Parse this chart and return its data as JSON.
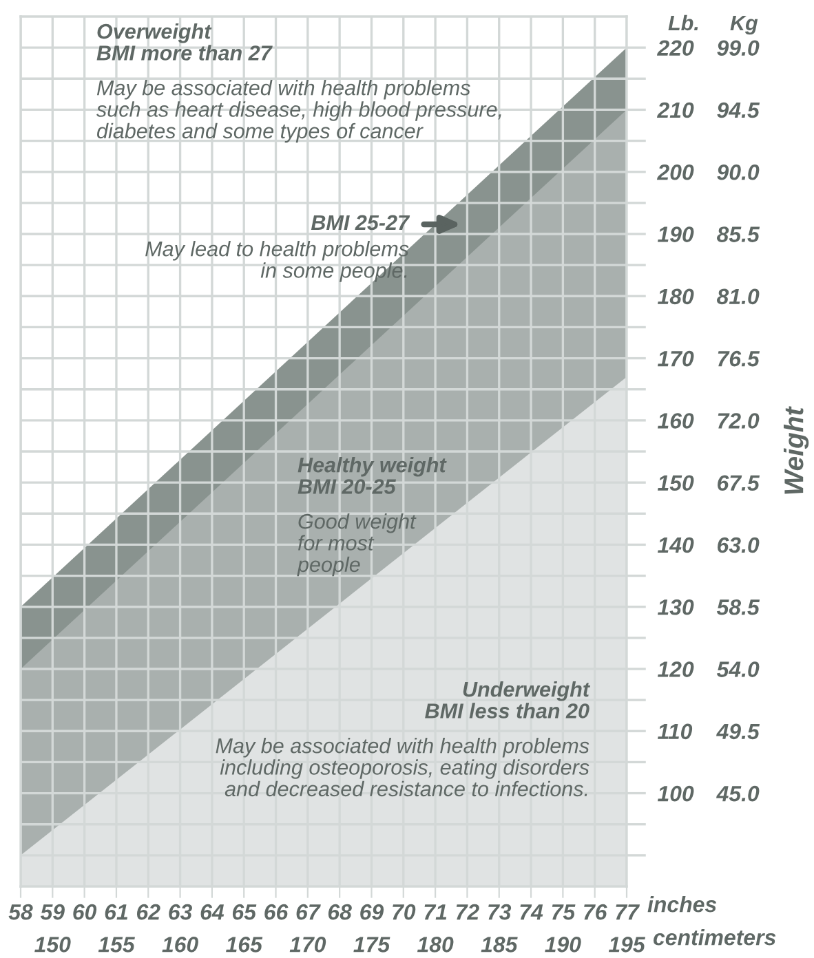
{
  "chart_data": {
    "type": "area",
    "x": [
      58,
      77
    ],
    "series": [
      {
        "name": null,
        "color": "#89938f",
        "values": [
          130,
          220
        ]
      },
      {
        "name": null,
        "color": "#a9b0ae",
        "values": [
          120,
          210
        ]
      },
      {
        "name": null,
        "color": "#e0e3e3",
        "values": [
          90,
          167
        ]
      }
    ],
    "xlim": [
      58,
      77
    ],
    "xticks": [
      58,
      59,
      60,
      61,
      62,
      63,
      64,
      65,
      66,
      67,
      68,
      69,
      70,
      71,
      72,
      73,
      74,
      75,
      76,
      77
    ],
    "xlabel": "inches",
    "x2lim": [
      147.5,
      195
    ],
    "x2ticks": [
      150,
      155,
      160,
      165,
      170,
      175,
      180,
      185,
      190,
      195
    ],
    "x2label": "centimeters",
    "ylim": [
      85,
      225
    ],
    "yticks": [
      {
        "value": 90,
        "label": null
      },
      {
        "value": 95,
        "label": null
      },
      100,
      {
        "value": 105,
        "label": null
      },
      110,
      {
        "value": 115,
        "label": null
      },
      120,
      {
        "value": 125,
        "label": null
      },
      130,
      {
        "value": 135,
        "label": null
      },
      140,
      {
        "value": 145,
        "label": null
      },
      150,
      {
        "value": 155,
        "label": null
      },
      160,
      {
        "value": 165,
        "label": null
      },
      170,
      {
        "value": 175,
        "label": null
      },
      180,
      {
        "value": 185,
        "label": null
      },
      190,
      {
        "value": 195,
        "label": null
      },
      200,
      {
        "value": 205,
        "label": null
      },
      210,
      {
        "value": 215,
        "label": null
      },
      220
    ],
    "y2lim": [
      38.25,
      101.25
    ],
    "y2ticks": [
      {
        "value": 45,
        "label": "45.0"
      },
      49.5,
      {
        "value": 54,
        "label": "54.0"
      },
      58.5,
      {
        "value": 63,
        "label": "63.0"
      },
      67.5,
      {
        "value": 72,
        "label": "72.0"
      },
      76.5,
      {
        "value": 81,
        "label": "81.0"
      },
      85.5,
      {
        "value": 90,
        "label": "90.0"
      },
      94.5,
      {
        "value": 99,
        "label": "99.0"
      }
    ],
    "y2label": "Weight",
    "grid": true,
    "annotations": [
      "Lb.",
      "Kg",
      "Overweight\nBMI more than 27",
      "May be associated with health problems\nsuch as heart disease, high blood pressure,\ndiabetes and some types of cancer",
      "BMI 25-27",
      "May lead to health problems\nin some people.",
      "Healthy weight\nBMI 20-25",
      "Good weight\nfor most\npeople",
      "Underweight\nBMI less than 20",
      "May be associated with health problems\nincluding osteoporosis, eating disorders\nand decreased resistance to infections."
    ]
  }
}
